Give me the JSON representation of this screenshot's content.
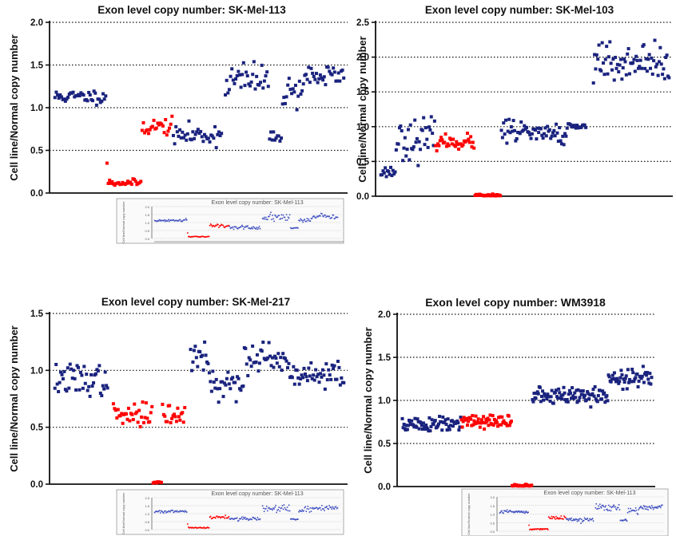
{
  "chart_data": [
    {
      "type": "scatter",
      "title": "Exon level copy number: SK-Mel-113",
      "ylabel": "Cell line/Normal copy number",
      "ylim": [
        0,
        2.0
      ],
      "yticks": [
        "0.0",
        "0.5",
        "1.0",
        "1.5",
        "2.0"
      ],
      "grid": "horizontal dotted",
      "segments": [
        {
          "color": "#1a237e",
          "n": 40,
          "mean": 1.13,
          "sd": 0.04
        },
        {
          "color": "#ff0000",
          "n": 1,
          "mean": 0.35,
          "sd": 0.0
        },
        {
          "color": "#ff0000",
          "n": 26,
          "mean": 0.12,
          "sd": 0.02
        },
        {
          "color": "#ff0000",
          "n": 24,
          "mean": 0.78,
          "sd": 0.05
        },
        {
          "color": "#1a237e",
          "n": 38,
          "mean": 0.68,
          "sd": 0.06
        },
        {
          "color": "#ffffff",
          "n": 2,
          "mean": 0.0,
          "sd": 0.0
        },
        {
          "color": "#1a237e",
          "n": 34,
          "mean": 1.32,
          "sd": 0.11
        },
        {
          "color": "#1a237e",
          "n": 10,
          "mean": 0.65,
          "sd": 0.03
        },
        {
          "color": "#1a237e",
          "n": 16,
          "mean": 1.2,
          "sd": 0.1
        },
        {
          "color": "#1a237e",
          "n": 32,
          "mean": 1.37,
          "sd": 0.07
        }
      ]
    },
    {
      "type": "scatter",
      "title": "Exon level copy number: SK-Mel-103",
      "ylabel": "Cell line/Normal copy number",
      "ylim": [
        0,
        2.5
      ],
      "yticks": [
        "0.0",
        "0.5",
        "1.0",
        "1.5",
        "2.0",
        "2.5"
      ],
      "grid": "horizontal dotted",
      "segments": [
        {
          "color": "#1a237e",
          "n": 14,
          "mean": 0.35,
          "sd": 0.04
        },
        {
          "color": "#1a237e",
          "n": 36,
          "mean": 0.82,
          "sd": 0.14
        },
        {
          "color": "#ff0000",
          "n": 36,
          "mean": 0.78,
          "sd": 0.05
        },
        {
          "color": "#ff0000",
          "n": 24,
          "mean": 0.01,
          "sd": 0.01
        },
        {
          "color": "#1a237e",
          "n": 60,
          "mean": 0.92,
          "sd": 0.07
        },
        {
          "color": "#1a237e",
          "n": 18,
          "mean": 1.02,
          "sd": 0.04
        },
        {
          "color": "#ffffff",
          "n": 6,
          "mean": 0.0,
          "sd": 0.0
        },
        {
          "color": "#1a237e",
          "n": 70,
          "mean": 1.93,
          "sd": 0.12
        }
      ]
    },
    {
      "type": "scatter",
      "title": "Exon level copy number: SK-Mel-217",
      "ylabel": "Cell line/Normal copy number",
      "ylim": [
        0,
        1.5
      ],
      "yticks": [
        "0.0",
        "0.5",
        "1.0",
        "1.5"
      ],
      "grid": "horizontal dotted",
      "segments": [
        {
          "color": "#1a237e",
          "n": 46,
          "mean": 0.92,
          "sd": 0.07
        },
        {
          "color": "#ffffff",
          "n": 4,
          "mean": 0.0,
          "sd": 0.0
        },
        {
          "color": "#ff0000",
          "n": 34,
          "mean": 0.6,
          "sd": 0.05
        },
        {
          "color": "#ff0000",
          "n": 8,
          "mean": 0.01,
          "sd": 0.01
        },
        {
          "color": "#ff0000",
          "n": 20,
          "mean": 0.61,
          "sd": 0.05
        },
        {
          "color": "#ffffff",
          "n": 4,
          "mean": 0.0,
          "sd": 0.0
        },
        {
          "color": "#1a237e",
          "n": 16,
          "mean": 1.12,
          "sd": 0.08
        },
        {
          "color": "#1a237e",
          "n": 30,
          "mean": 0.87,
          "sd": 0.06
        },
        {
          "color": "#1a237e",
          "n": 40,
          "mean": 1.08,
          "sd": 0.08
        },
        {
          "color": "#1a237e",
          "n": 46,
          "mean": 0.96,
          "sd": 0.06
        }
      ]
    },
    {
      "type": "scatter",
      "title": "Exon level copy number: WM3918",
      "ylabel": "Cell line/Normal copy number",
      "ylim": [
        0,
        2.0
      ],
      "yticks": [
        "0.0",
        "0.5",
        "1.0",
        "1.5",
        "2.0"
      ],
      "grid": "horizontal dotted",
      "segments": [
        {
          "color": "#1a237e",
          "n": 70,
          "mean": 0.72,
          "sd": 0.05
        },
        {
          "color": "#ff0000",
          "n": 60,
          "mean": 0.75,
          "sd": 0.04
        },
        {
          "color": "#ff0000",
          "n": 24,
          "mean": 0.01,
          "sd": 0.01
        },
        {
          "color": "#1a237e",
          "n": 90,
          "mean": 1.05,
          "sd": 0.05
        },
        {
          "color": "#1a237e",
          "n": 52,
          "mean": 1.25,
          "sd": 0.06
        }
      ]
    }
  ],
  "inset": {
    "title": "Exon level copy number: SK-Mel-113",
    "ylabel": "Cell line/Normal copy number",
    "yticks": [
      "0.0",
      "0.5",
      "1.0",
      "1.5",
      "2.0"
    ]
  }
}
